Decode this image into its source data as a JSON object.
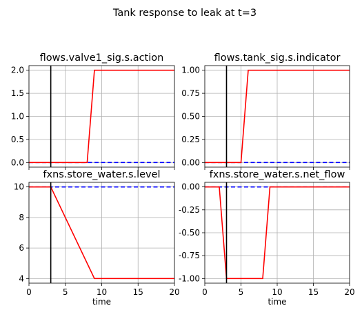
{
  "figure": {
    "title": "Tank response to leak at t=3"
  },
  "chart_data": [
    {
      "type": "line",
      "title": "flows.valve1_sig.s.action",
      "xlabel": "",
      "ylabel": "",
      "xlim": [
        0,
        20
      ],
      "ylim": [
        -0.1,
        2.1
      ],
      "xticks": [
        0,
        5,
        10,
        15,
        20
      ],
      "yticks": [
        0.0,
        0.5,
        1.0,
        1.5,
        2.0
      ],
      "ytick_labels": [
        "0.0",
        "0.5",
        "1.0",
        "1.5",
        "2.0"
      ],
      "show_xtick_labels": false,
      "grid": true,
      "fault_time": 3,
      "series": [
        {
          "style": "solid",
          "color": "#ff0000",
          "x": [
            0,
            8,
            9,
            20
          ],
          "y": [
            0,
            0,
            2,
            2
          ]
        },
        {
          "style": "dashed",
          "color": "#0000ff",
          "x": [
            0,
            20
          ],
          "y": [
            0,
            0
          ]
        }
      ]
    },
    {
      "type": "line",
      "title": "flows.tank_sig.s.indicator",
      "xlabel": "",
      "ylabel": "",
      "xlim": [
        0,
        20
      ],
      "ylim": [
        -0.05,
        1.05
      ],
      "xticks": [
        0,
        5,
        10,
        15,
        20
      ],
      "yticks": [
        0.0,
        0.25,
        0.5,
        0.75,
        1.0
      ],
      "ytick_labels": [
        "0.00",
        "0.25",
        "0.50",
        "0.75",
        "1.00"
      ],
      "show_xtick_labels": false,
      "grid": true,
      "fault_time": 3,
      "series": [
        {
          "style": "solid",
          "color": "#ff0000",
          "x": [
            0,
            5,
            6,
            20
          ],
          "y": [
            0,
            0,
            1,
            1
          ]
        },
        {
          "style": "dashed",
          "color": "#0000ff",
          "x": [
            0,
            20
          ],
          "y": [
            0,
            0
          ]
        }
      ]
    },
    {
      "type": "line",
      "title": "fxns.store_water.s.level",
      "xlabel": "time",
      "ylabel": "",
      "xlim": [
        0,
        20
      ],
      "ylim": [
        3.7,
        10.3
      ],
      "xticks": [
        0,
        5,
        10,
        15,
        20
      ],
      "xtick_labels": [
        "0",
        "5",
        "10",
        "15",
        "20"
      ],
      "yticks": [
        4,
        6,
        8,
        10
      ],
      "ytick_labels": [
        "4",
        "6",
        "8",
        "10"
      ],
      "show_xtick_labels": true,
      "grid": true,
      "fault_time": 3,
      "series": [
        {
          "style": "solid",
          "color": "#ff0000",
          "x": [
            0,
            3,
            9,
            20
          ],
          "y": [
            10,
            10,
            4,
            4
          ]
        },
        {
          "style": "dashed",
          "color": "#0000ff",
          "x": [
            0,
            20
          ],
          "y": [
            10,
            10
          ]
        }
      ]
    },
    {
      "type": "line",
      "title": "fxns.store_water.s.net_flow",
      "xlabel": "time",
      "ylabel": "",
      "xlim": [
        0,
        20
      ],
      "ylim": [
        -1.05,
        0.05
      ],
      "xticks": [
        0,
        5,
        10,
        15,
        20
      ],
      "xtick_labels": [
        "0",
        "5",
        "10",
        "15",
        "20"
      ],
      "yticks": [
        0.0,
        -0.25,
        -0.5,
        -0.75,
        -1.0
      ],
      "ytick_labels": [
        "0.00",
        "-0.25",
        "-0.50",
        "-0.75",
        "-1.00"
      ],
      "show_xtick_labels": true,
      "grid": true,
      "fault_time": 3,
      "series": [
        {
          "style": "solid",
          "color": "#ff0000",
          "x": [
            0,
            2,
            3,
            8,
            9,
            20
          ],
          "y": [
            0,
            0,
            -1,
            -1,
            0,
            0
          ]
        },
        {
          "style": "dashed",
          "color": "#0000ff",
          "x": [
            0,
            20
          ],
          "y": [
            0,
            0
          ]
        }
      ]
    }
  ]
}
